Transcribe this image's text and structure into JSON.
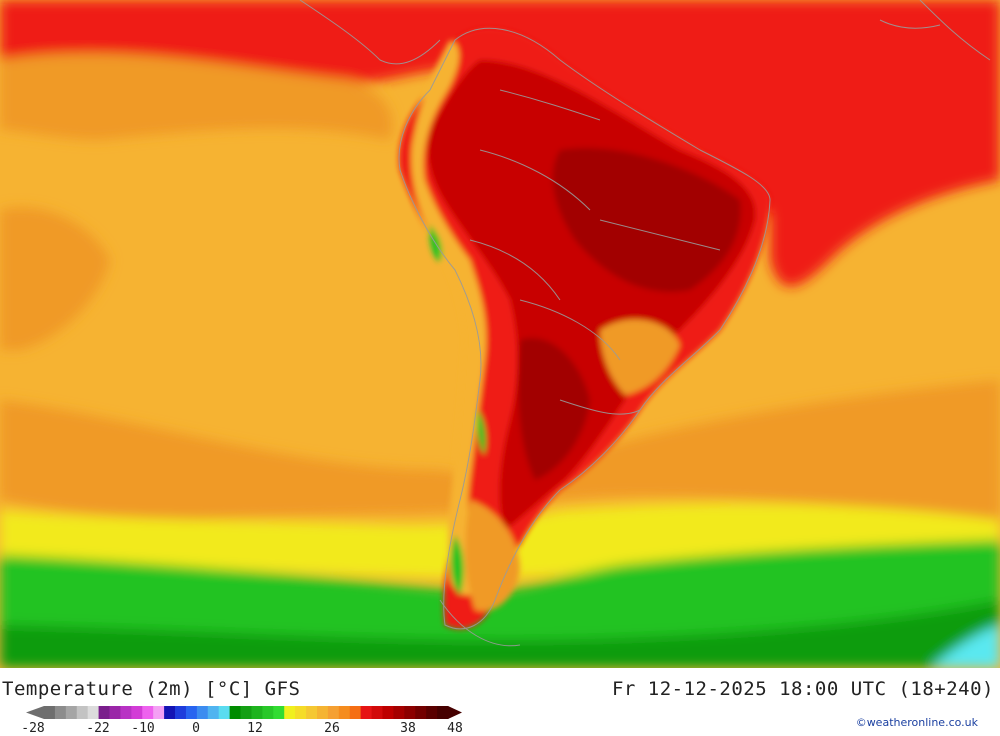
{
  "header": {
    "title": "Temperature (2m) [°C] GFS",
    "valid_time": "Fr 12-12-2025 18:00 UTC (18+240)"
  },
  "legend": {
    "ticks": [
      "-28",
      "-22",
      "-10",
      "0",
      "12",
      "26",
      "38",
      "48"
    ],
    "colors": [
      "#6e6e6e",
      "#8c8c8c",
      "#a5a5a5",
      "#c3c3c3",
      "#dcdcdc",
      "#7a1e8c",
      "#9a26a8",
      "#b832c4",
      "#d23cd6",
      "#ee62ee",
      "#f4a0f4",
      "#1414b4",
      "#1e3cdc",
      "#2864f0",
      "#3c8cf0",
      "#50b4f0",
      "#5adcf0",
      "#008c00",
      "#14a014",
      "#1eb41e",
      "#28c828",
      "#32dc32",
      "#f0f01e",
      "#f5dc28",
      "#f5c832",
      "#f5b432",
      "#f5a032",
      "#f58c1e",
      "#f56e14",
      "#e61414",
      "#d20a0a",
      "#be0000",
      "#a50000",
      "#8c0000",
      "#730000",
      "#5a0000",
      "#460000"
    ]
  },
  "map": {
    "colors": {
      "ocean_warm": "#f09a28",
      "ocean_mild": "#f6b332",
      "hot": "#ef1a12",
      "very_hot": "#c80606",
      "extreme": "#a20404",
      "cool": "#f2ea1e",
      "cold": "#22c322",
      "coldest": "#0c9c0c",
      "icy": "#5ae8f0",
      "borders": "#9a9a9a"
    }
  },
  "credit": "©weatheronline.co.uk"
}
